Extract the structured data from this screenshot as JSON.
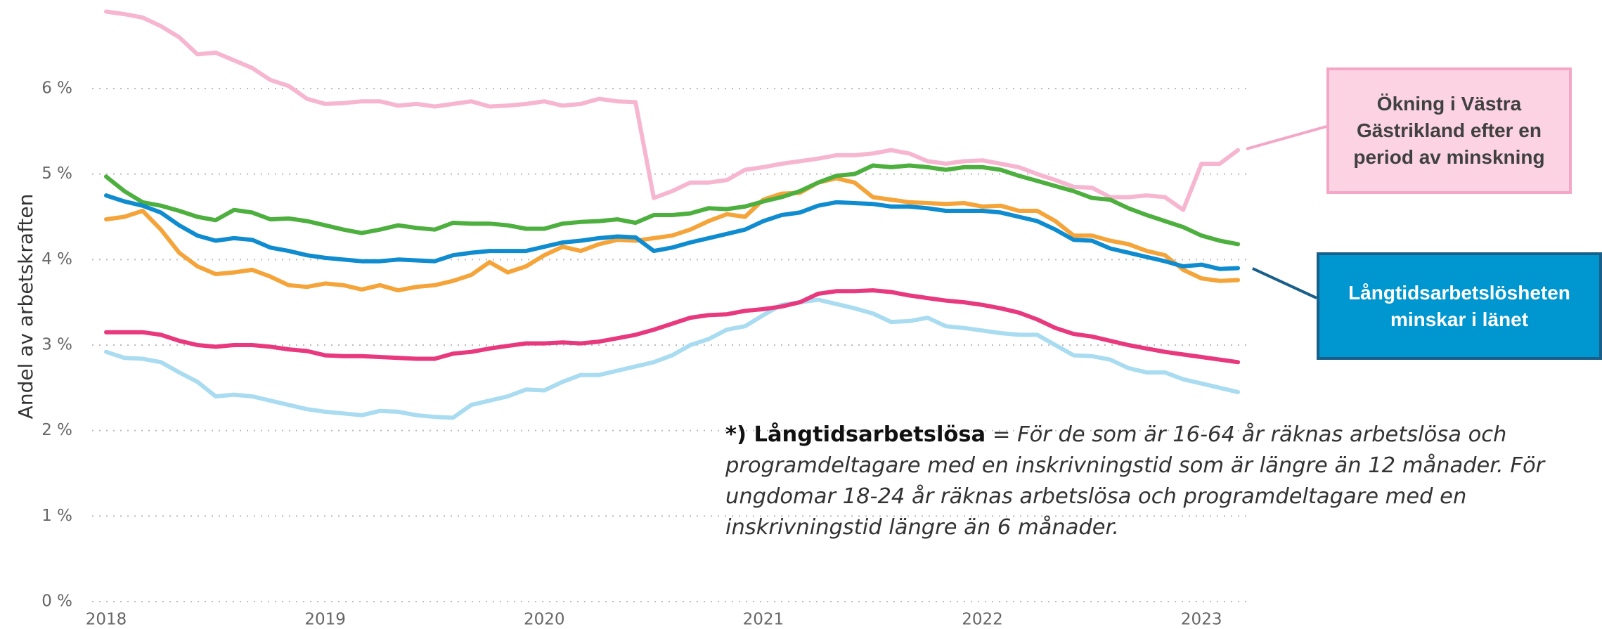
{
  "chart_data": {
    "type": "line",
    "y_axis_label": "Andel av arbetskraften",
    "categories": [
      "2018",
      null,
      null,
      null,
      null,
      null,
      null,
      null,
      null,
      null,
      null,
      null,
      "2019",
      null,
      null,
      null,
      null,
      null,
      null,
      null,
      null,
      null,
      null,
      null,
      "2020",
      null,
      null,
      null,
      null,
      null,
      null,
      null,
      null,
      null,
      null,
      null,
      "2021",
      null,
      null,
      null,
      null,
      null,
      null,
      null,
      null,
      null,
      null,
      null,
      "2022",
      null,
      null,
      null,
      null,
      null,
      null,
      null,
      null,
      null,
      null,
      null,
      "2023",
      null,
      null
    ],
    "ylim": [
      0,
      7
    ],
    "yticks": [
      {
        "value": 0,
        "label": "0 %"
      },
      {
        "value": 1,
        "label": "1 %"
      },
      {
        "value": 2,
        "label": "2 %"
      },
      {
        "value": 3,
        "label": "3 %"
      },
      {
        "value": 4,
        "label": "4 %"
      },
      {
        "value": 5,
        "label": "5 %"
      },
      {
        "value": 6,
        "label": "6 %"
      }
    ],
    "grid": true,
    "series": [
      {
        "color": "#f7b6d0",
        "values": [
          6.9,
          6.87,
          6.83,
          6.73,
          6.6,
          6.4,
          6.42,
          6.33,
          6.24,
          6.1,
          6.03,
          5.88,
          5.82,
          5.83,
          5.85,
          5.85,
          5.8,
          5.82,
          5.79,
          5.82,
          5.85,
          5.79,
          5.8,
          5.82,
          5.85,
          5.8,
          5.82,
          5.88,
          5.85,
          5.84,
          4.72,
          4.8,
          4.9,
          4.9,
          4.93,
          5.05,
          5.08,
          5.12,
          5.15,
          5.18,
          5.22,
          5.22,
          5.24,
          5.28,
          5.24,
          5.15,
          5.12,
          5.15,
          5.16,
          5.12,
          5.08,
          5.0,
          4.93,
          4.85,
          4.84,
          4.73,
          4.73,
          4.75,
          4.73,
          4.58,
          5.12,
          5.12,
          5.28
        ]
      },
      {
        "color": "#a9dcf0",
        "values": [
          2.92,
          2.85,
          2.84,
          2.8,
          2.68,
          2.57,
          2.4,
          2.42,
          2.4,
          2.35,
          2.3,
          2.25,
          2.22,
          2.2,
          2.18,
          2.23,
          2.22,
          2.18,
          2.16,
          2.15,
          2.3,
          2.35,
          2.4,
          2.48,
          2.47,
          2.57,
          2.65,
          2.65,
          2.7,
          2.75,
          2.8,
          2.88,
          3.0,
          3.07,
          3.18,
          3.22,
          3.35,
          3.47,
          3.5,
          3.53,
          3.48,
          3.43,
          3.37,
          3.27,
          3.28,
          3.32,
          3.22,
          3.2,
          3.17,
          3.14,
          3.12,
          3.12,
          3.0,
          2.88,
          2.87,
          2.83,
          2.73,
          2.68,
          2.68,
          2.6,
          2.55,
          2.5,
          2.45
        ]
      },
      {
        "color": "#e8397e",
        "values": [
          3.15,
          3.15,
          3.15,
          3.12,
          3.05,
          3.0,
          2.98,
          3.0,
          3.0,
          2.98,
          2.95,
          2.93,
          2.88,
          2.87,
          2.87,
          2.86,
          2.85,
          2.84,
          2.84,
          2.9,
          2.92,
          2.96,
          2.99,
          3.02,
          3.02,
          3.03,
          3.02,
          3.04,
          3.08,
          3.12,
          3.18,
          3.25,
          3.32,
          3.35,
          3.36,
          3.4,
          3.42,
          3.45,
          3.5,
          3.6,
          3.63,
          3.63,
          3.64,
          3.62,
          3.58,
          3.55,
          3.52,
          3.5,
          3.47,
          3.43,
          3.38,
          3.3,
          3.2,
          3.13,
          3.1,
          3.05,
          3.0,
          2.96,
          2.92,
          2.89,
          2.86,
          2.83,
          2.8
        ]
      },
      {
        "color": "#f5a43a",
        "values": [
          4.47,
          4.5,
          4.57,
          4.35,
          4.08,
          3.92,
          3.83,
          3.85,
          3.88,
          3.8,
          3.7,
          3.68,
          3.72,
          3.7,
          3.65,
          3.7,
          3.64,
          3.68,
          3.7,
          3.75,
          3.82,
          3.97,
          3.85,
          3.92,
          4.05,
          4.15,
          4.1,
          4.18,
          4.23,
          4.22,
          4.25,
          4.28,
          4.35,
          4.45,
          4.53,
          4.5,
          4.7,
          4.77,
          4.78,
          4.9,
          4.95,
          4.9,
          4.73,
          4.7,
          4.67,
          4.66,
          4.65,
          4.66,
          4.62,
          4.63,
          4.57,
          4.57,
          4.45,
          4.28,
          4.28,
          4.22,
          4.18,
          4.1,
          4.05,
          3.88,
          3.78,
          3.75,
          3.76
        ]
      },
      {
        "color": "#4caf3e",
        "values": [
          4.97,
          4.8,
          4.67,
          4.63,
          4.57,
          4.5,
          4.46,
          4.58,
          4.55,
          4.47,
          4.48,
          4.45,
          4.4,
          4.35,
          4.31,
          4.35,
          4.4,
          4.37,
          4.35,
          4.43,
          4.42,
          4.42,
          4.4,
          4.36,
          4.36,
          4.42,
          4.44,
          4.45,
          4.47,
          4.43,
          4.52,
          4.52,
          4.54,
          4.6,
          4.59,
          4.62,
          4.68,
          4.73,
          4.8,
          4.9,
          4.98,
          5.0,
          5.1,
          5.08,
          5.1,
          5.08,
          5.05,
          5.08,
          5.08,
          5.05,
          4.98,
          4.92,
          4.86,
          4.8,
          4.72,
          4.7,
          4.6,
          4.52,
          4.45,
          4.38,
          4.28,
          4.22,
          4.18
        ]
      },
      {
        "color": "#0f8ccf",
        "values": [
          4.75,
          4.68,
          4.63,
          4.55,
          4.4,
          4.28,
          4.22,
          4.25,
          4.23,
          4.14,
          4.1,
          4.05,
          4.02,
          4.0,
          3.98,
          3.98,
          4.0,
          3.99,
          3.98,
          4.05,
          4.08,
          4.1,
          4.1,
          4.1,
          4.15,
          4.2,
          4.22,
          4.25,
          4.27,
          4.26,
          4.1,
          4.14,
          4.2,
          4.25,
          4.3,
          4.35,
          4.45,
          4.52,
          4.55,
          4.63,
          4.67,
          4.66,
          4.65,
          4.62,
          4.62,
          4.6,
          4.57,
          4.57,
          4.57,
          4.55,
          4.5,
          4.45,
          4.35,
          4.23,
          4.22,
          4.13,
          4.08,
          4.03,
          3.98,
          3.92,
          3.94,
          3.89,
          3.9
        ]
      }
    ],
    "annotations": [
      {
        "text": "Ökning i Västra Gästrikland efter en period av minskning"
      },
      {
        "text": "Långtidsarbetslösheten minskar i länet"
      }
    ],
    "footnote": {
      "term": "*) Långtidsarbetslösa",
      "definition": "= För de som är 16-64 år räknas arbetslösa och programdeltagare med en inskrivningstid som är längre än 12 månader. För ungdomar 18-24 år räknas arbetslösa och programdeltagare med en inskrivningstid längre än 6 månader."
    }
  }
}
